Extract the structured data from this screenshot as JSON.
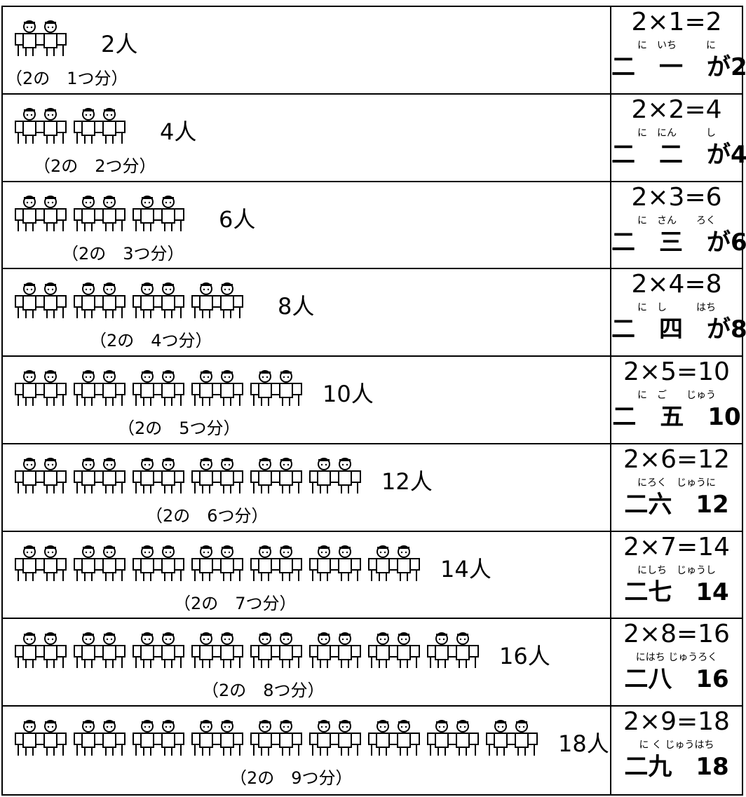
{
  "rows": [
    {
      "benches": 1,
      "count": "2人",
      "group": "（2の　1つ分）",
      "equation": "2×1=2",
      "reading": "に　いち　　　に",
      "kanji": "二　一　が2"
    },
    {
      "benches": 2,
      "count": "4人",
      "group": "（2の　2つ分）",
      "equation": "2×2=4",
      "reading": "に　にん　　　し",
      "kanji": "二　二　が4"
    },
    {
      "benches": 3,
      "count": "6人",
      "group": "（2の　3つ分）",
      "equation": "2×3=6",
      "reading": "に　さん　　ろく",
      "kanji": "二　三　が6"
    },
    {
      "benches": 4,
      "count": "8人",
      "group": "（2の　4つ分）",
      "equation": "2×4=8",
      "reading": "に　し　　　はち",
      "kanji": "二　四　が8"
    },
    {
      "benches": 5,
      "count": "10人",
      "group": "（2の　5つ分）",
      "equation": "2×5=10",
      "reading": "に　ご　　じゅう",
      "kanji": "二　五　10"
    },
    {
      "benches": 6,
      "count": "12人",
      "group": "（2の　6つ分）",
      "equation": "2×6=12",
      "reading": "にろく　じゅうに",
      "kanji": "二六　12"
    },
    {
      "benches": 7,
      "count": "14人",
      "group": "（2の　7つ分）",
      "equation": "2×7=14",
      "reading": "にしち　じゅうし",
      "kanji": "二七　14"
    },
    {
      "benches": 8,
      "count": "16人",
      "group": "（2の　8つ分）",
      "equation": "2×8=16",
      "reading": "にはち じゅうろく",
      "kanji": "二八　16"
    },
    {
      "benches": 9,
      "count": "18人",
      "group": "（2の　9つ分）",
      "equation": "2×9=18",
      "reading": "に く じゅうはち",
      "kanji": "二九　18"
    }
  ]
}
